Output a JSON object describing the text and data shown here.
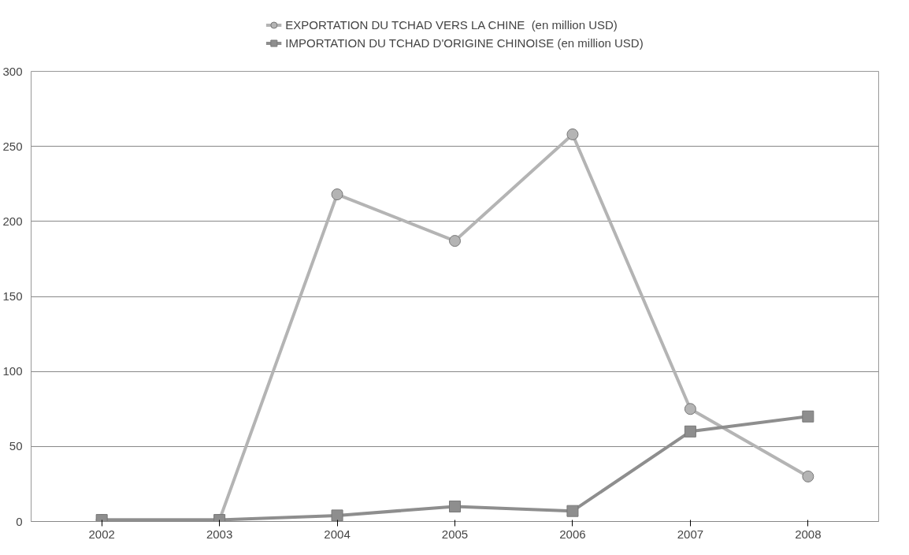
{
  "chart_data": {
    "type": "line",
    "categories": [
      "2002",
      "2003",
      "2004",
      "2005",
      "2006",
      "2007",
      "2008"
    ],
    "series": [
      {
        "name": "EXPORTATION DU TCHAD VERS LA CHINE  (en million USD)",
        "color": "#b4b4b4",
        "marker": "circle",
        "values": [
          1,
          1,
          218,
          187,
          258,
          75,
          30
        ]
      },
      {
        "name": "IMPORTATION DU TCHAD D'ORIGINE CHINOISE (en million USD)",
        "color": "#8e8e8e",
        "marker": "square",
        "values": [
          1,
          1,
          4,
          10,
          7,
          60,
          70
        ]
      }
    ],
    "ylim": [
      0,
      300
    ],
    "yticks": [
      0,
      50,
      100,
      150,
      200,
      250,
      300
    ],
    "grid": "y",
    "legend": "top",
    "line_style": "solid"
  }
}
